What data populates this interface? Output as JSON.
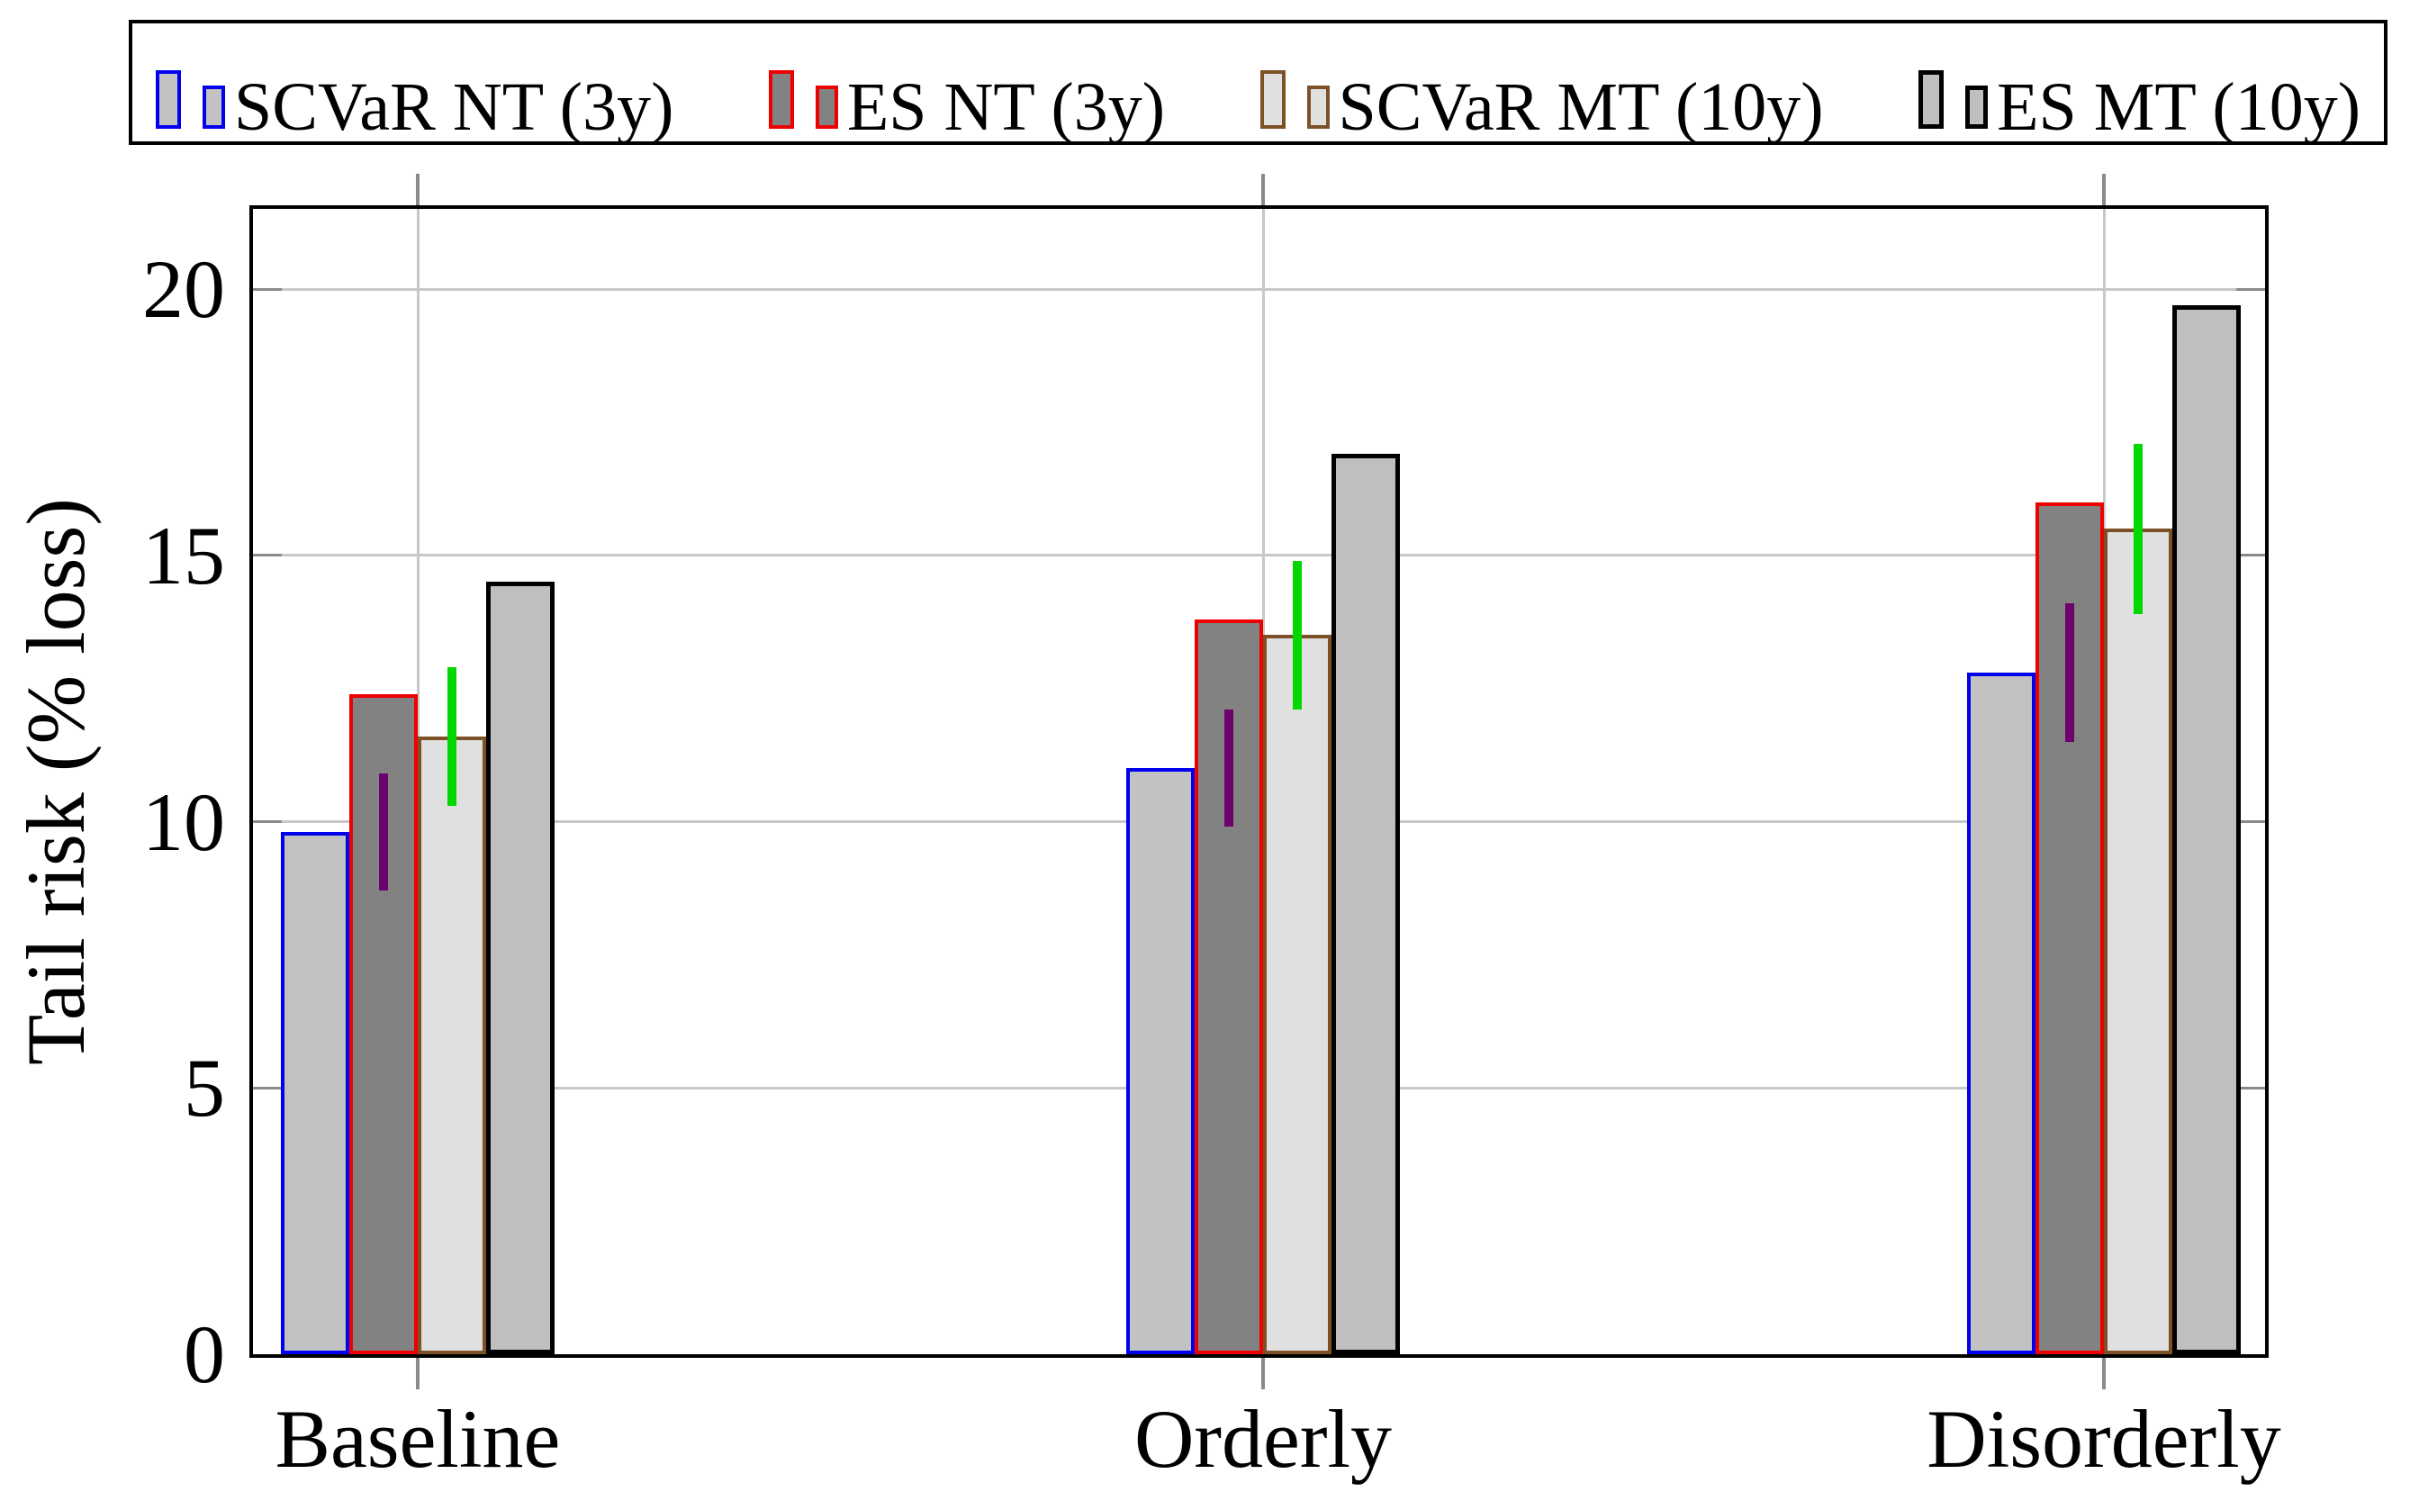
{
  "chart_data": {
    "type": "bar",
    "title": "",
    "ylabel": "Tail risk (% loss)",
    "xlabel": "",
    "categories": [
      "Baseline",
      "Orderly",
      "Disorderly"
    ],
    "series": [
      {
        "name": "SCVaR NT (3y)",
        "fill": "#c2c2c2",
        "border": "#0000ee",
        "border_px": 4,
        "values": [
          9.8,
          11.0,
          12.8
        ]
      },
      {
        "name": "ES NT (3y)",
        "fill": "#828282",
        "border": "#ee0000",
        "border_px": 4,
        "values": [
          12.4,
          13.8,
          16.0
        ]
      },
      {
        "name": "SCVaR MT (10y)",
        "fill": "#e0e0e0",
        "border": "#7c5128",
        "border_px": 4,
        "values": [
          11.6,
          13.5,
          15.5
        ]
      },
      {
        "name": "ES MT (10y)",
        "fill": "#bfbfbf",
        "border": "#000000",
        "border_px": 5,
        "values": [
          14.5,
          16.9,
          19.7
        ]
      }
    ],
    "error_bars": [
      {
        "color": "#6c026c",
        "at_series": 1,
        "ranges": [
          [
            8.7,
            10.9
          ],
          [
            9.9,
            12.1
          ],
          [
            11.5,
            14.1
          ]
        ]
      },
      {
        "color": "#00d800",
        "at_series": 2,
        "ranges": [
          [
            10.3,
            12.9
          ],
          [
            12.1,
            14.9
          ],
          [
            13.9,
            17.1
          ]
        ]
      }
    ],
    "yticks": [
      0,
      5,
      10,
      15,
      20
    ],
    "ylim": [
      0,
      21.6
    ],
    "grid": true,
    "legend_position": "top",
    "colors": {
      "gridline": "#c8c8c8",
      "tick": "#8a8a8a",
      "axis": "#000000",
      "background": "#ffffff"
    }
  }
}
